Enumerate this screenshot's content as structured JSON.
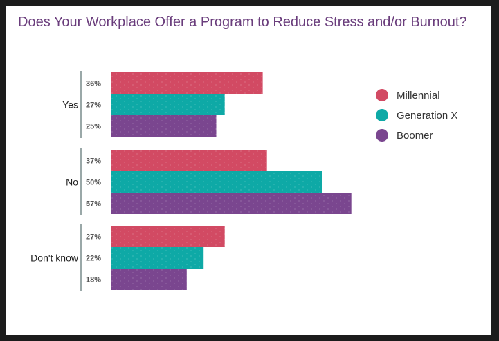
{
  "chart_data": {
    "type": "bar",
    "orientation": "horizontal",
    "title": "Does Your Workplace Offer a Program to Reduce Stress and/or Burnout?",
    "categories": [
      "Yes",
      "No",
      "Don't know"
    ],
    "value_labels": [
      [
        "36%",
        "27%",
        "25%"
      ],
      [
        "37%",
        "50%",
        "57%"
      ],
      [
        "27%",
        "22%",
        "18%"
      ]
    ],
    "series": [
      {
        "name": "Millennial",
        "color": "#d24a63",
        "values": [
          36,
          37,
          27
        ]
      },
      {
        "name": "Generation X",
        "color": "#0ea9a6",
        "values": [
          27,
          50,
          22
        ]
      },
      {
        "name": "Boomer",
        "color": "#7a468f",
        "values": [
          25,
          57,
          18
        ]
      }
    ],
    "xlim": [
      0,
      57
    ],
    "grid": false,
    "legend_position": "right"
  }
}
